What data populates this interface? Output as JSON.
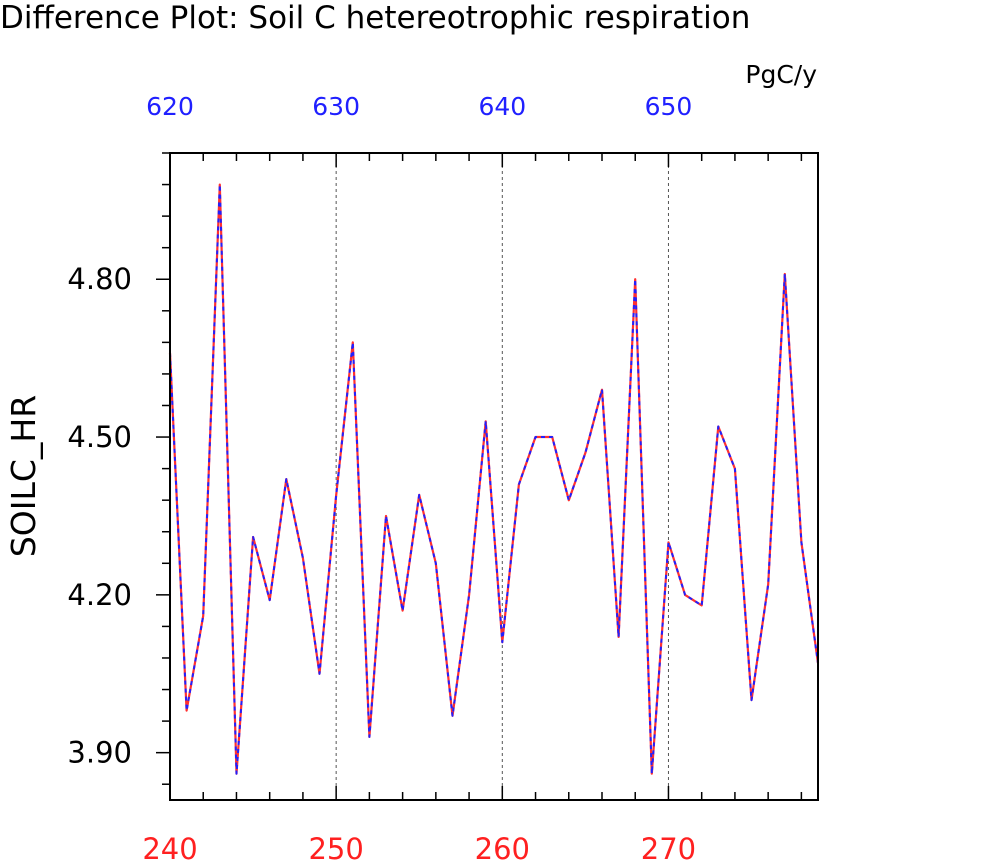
{
  "title": "Difference Plot: Soil C hetereotrophic respiration",
  "units": "PgC/y",
  "ylabel": "SOILC_HR",
  "colors": {
    "bottom_axis": "#ff2020",
    "top_axis": "#2020ff",
    "series_a": "#ff3030",
    "series_b": "#2020ff",
    "frame": "#000000"
  },
  "chart_data": {
    "type": "line",
    "title": "Difference Plot: Soil C hetereotrophic respiration",
    "ylabel": "SOILC_HR",
    "units": "PgC/y",
    "xlim": [
      240,
      279
    ],
    "ylim": [
      3.81,
      5.04
    ],
    "top_axis_offset": 380,
    "bottom_ticks": [
      "240",
      "250",
      "260",
      "270"
    ],
    "top_ticks": [
      "620",
      "630",
      "640",
      "650"
    ],
    "y_ticks": [
      "3.90",
      "4.20",
      "4.50",
      "4.80"
    ],
    "grid": "vertical dashed at 250, 260, 270",
    "x": [
      240,
      241,
      242,
      243,
      244,
      245,
      246,
      247,
      248,
      249,
      250,
      251,
      252,
      253,
      254,
      255,
      256,
      257,
      258,
      259,
      260,
      261,
      262,
      263,
      264,
      265,
      266,
      267,
      268,
      269,
      270,
      271,
      272,
      273,
      274,
      275,
      276,
      277,
      278,
      279
    ],
    "series": [
      {
        "values": [
          4.66,
          3.98,
          4.16,
          4.98,
          3.86,
          4.31,
          4.19,
          4.42,
          4.27,
          4.05,
          4.39,
          4.68,
          3.93,
          4.35,
          4.17,
          4.39,
          4.26,
          3.97,
          4.2,
          4.53,
          4.11,
          4.41,
          4.5,
          4.5,
          4.38,
          4.47,
          4.59,
          4.12,
          4.8,
          3.86,
          4.3,
          4.2,
          4.18,
          4.52,
          4.44,
          4.0,
          4.22,
          4.81,
          4.3,
          4.07
        ]
      },
      {
        "values": [
          4.66,
          3.98,
          4.16,
          4.98,
          3.86,
          4.31,
          4.19,
          4.42,
          4.27,
          4.05,
          4.39,
          4.68,
          3.93,
          4.35,
          4.17,
          4.39,
          4.26,
          3.97,
          4.2,
          4.53,
          4.11,
          4.41,
          4.5,
          4.5,
          4.38,
          4.47,
          4.59,
          4.12,
          4.8,
          3.86,
          4.3,
          4.2,
          4.18,
          4.52,
          4.44,
          4.0,
          4.22,
          4.81,
          4.3,
          4.07
        ]
      }
    ]
  }
}
